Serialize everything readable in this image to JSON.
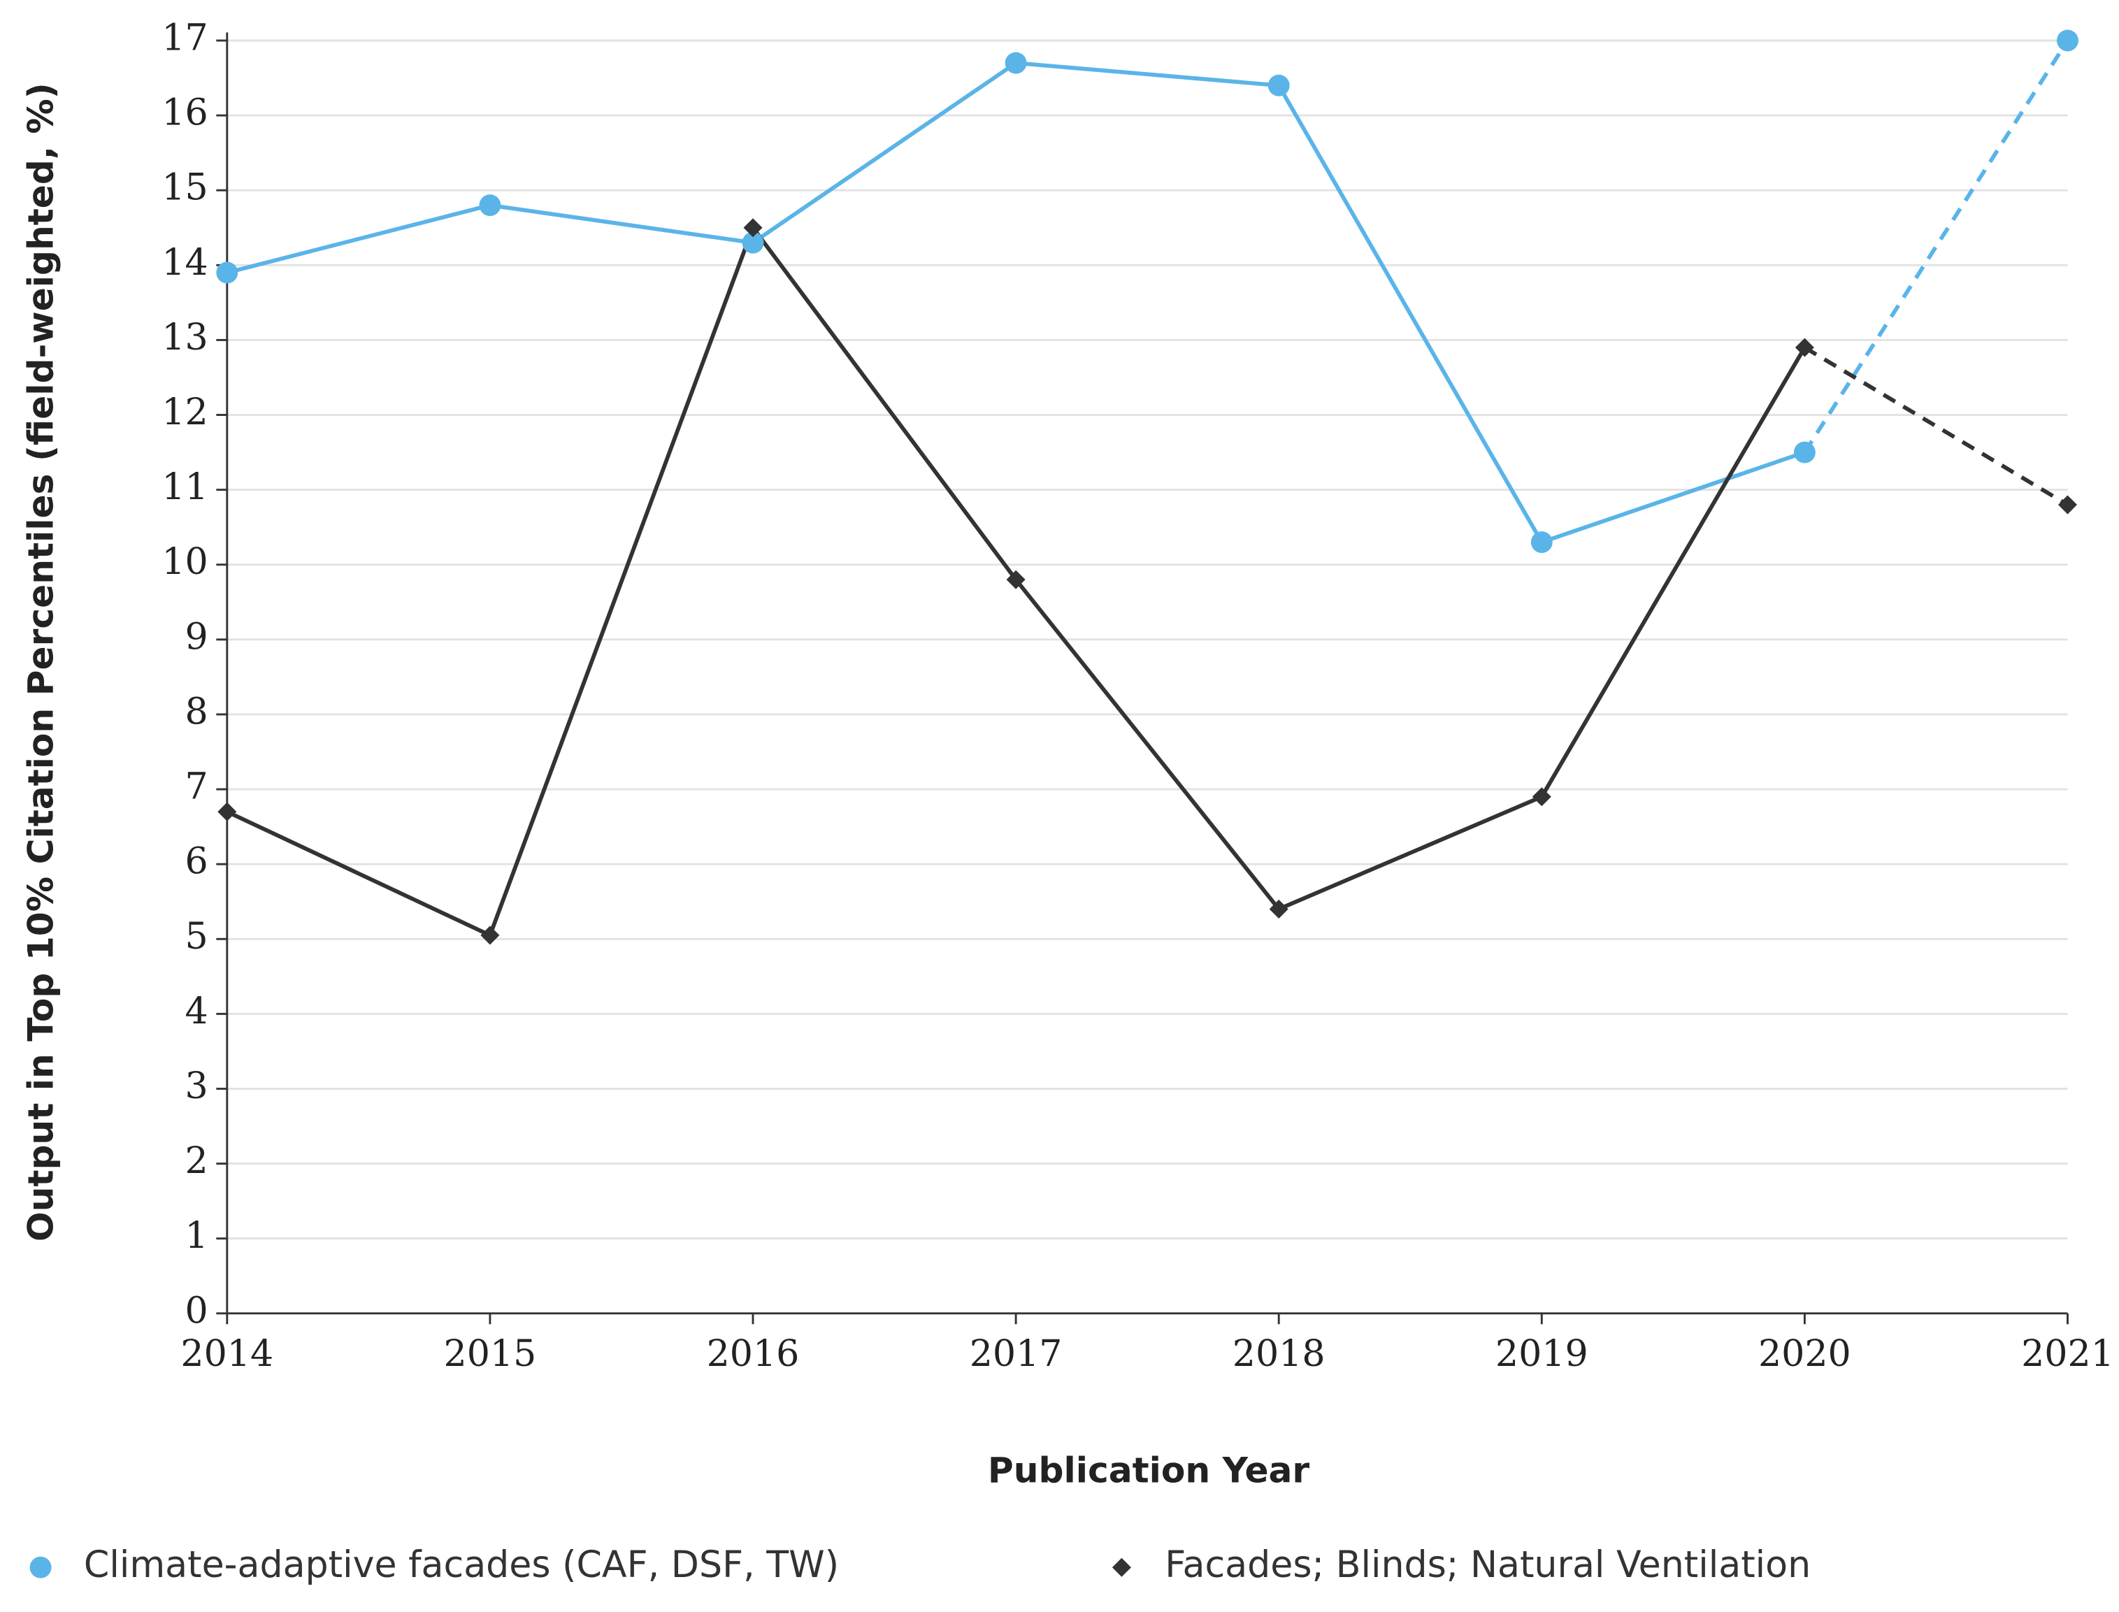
{
  "chart_data": {
    "type": "line",
    "x_label": "Publication Year",
    "y_label": "Output in Top 10% Citation Percentiles (field-weighted, %)",
    "x": [
      2014,
      2015,
      2016,
      2017,
      2018,
      2019,
      2020,
      2021
    ],
    "xlim": [
      2014,
      2021
    ],
    "xticks": [
      2014,
      2015,
      2016,
      2017,
      2018,
      2019,
      2020,
      2021
    ],
    "ylim": [
      0,
      17
    ],
    "yticks": [
      0,
      1,
      2,
      3,
      4,
      5,
      6,
      7,
      8,
      9,
      10,
      11,
      12,
      13,
      14,
      15,
      16,
      17
    ],
    "grid": true,
    "last_segment_dashed": true,
    "legend": "bottom",
    "series": [
      {
        "name": "Climate-adaptive facades (CAF, DSF, TW)",
        "color": "#5ab4e8",
        "marker": "circle",
        "values": [
          13.9,
          14.8,
          14.3,
          16.7,
          16.4,
          10.3,
          11.5,
          17.0
        ]
      },
      {
        "name": "Facades; Blinds; Natural Ventilation",
        "color": "#333333",
        "marker": "diamond",
        "values": [
          6.7,
          5.05,
          14.5,
          9.8,
          5.4,
          6.9,
          12.9,
          10.8
        ]
      }
    ]
  }
}
